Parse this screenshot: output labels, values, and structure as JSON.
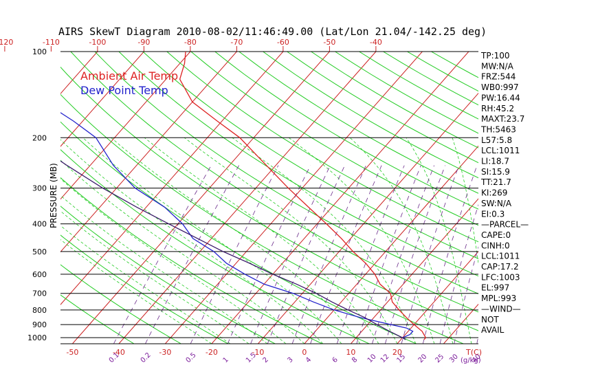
{
  "chart_data": {
    "type": "line",
    "title": "AIRS SkewT Diagram 2010-08-02/11:46:49.00 (Lat/Lon 21.04/-142.25 deg)",
    "ylabel": "PRESSURE (MB)",
    "bottom_axis_unit": "T(C)",
    "mixing_unit": "(g/kg)",
    "y_scale": "log",
    "ylim": [
      1050,
      100
    ],
    "pressure_lines": [
      100,
      200,
      300,
      400,
      500,
      600,
      700,
      800,
      900,
      1000
    ],
    "pressure_tick_labels": [
      "100",
      "200",
      "300",
      "400",
      "500",
      "600",
      "700",
      "800",
      "900",
      "1000"
    ],
    "bottom_temp_ticks": [
      -50,
      -40,
      -30,
      -20,
      -10,
      0,
      10,
      20
    ],
    "bottom_temp_labels": [
      "-50",
      "-40",
      "-30",
      "-20",
      "-10",
      "0",
      "10",
      "20"
    ],
    "top_temp_ticks": [
      -120,
      -110,
      -100,
      -90,
      -80,
      -70,
      -60,
      -50,
      -40
    ],
    "top_temp_labels": [
      "-120",
      "-110",
      "-100",
      "-90",
      "-80",
      "-70",
      "-60",
      "-50",
      "-40"
    ],
    "mixing_ratio_labels": [
      "0.1",
      "0.2",
      "0.5",
      "1",
      "1.5",
      "2",
      "3",
      "4",
      "6",
      "8",
      "10",
      "12",
      "15",
      "20",
      "25",
      "30",
      "40"
    ],
    "legend": [
      {
        "label": "Ambient Air Temp",
        "color": "#dd2222"
      },
      {
        "label": "Dew Point Temp",
        "color": "#2222cc"
      }
    ],
    "series": [
      {
        "name": "Ambient Air Temp",
        "color": "#dd2222",
        "points": [
          [
            1015,
            25
          ],
          [
            1000,
            25
          ],
          [
            975,
            24
          ],
          [
            950,
            23
          ],
          [
            900,
            20
          ],
          [
            850,
            17
          ],
          [
            800,
            14
          ],
          [
            750,
            11
          ],
          [
            700,
            9
          ],
          [
            650,
            5
          ],
          [
            600,
            2
          ],
          [
            550,
            -2
          ],
          [
            500,
            -7
          ],
          [
            450,
            -12
          ],
          [
            400,
            -18
          ],
          [
            350,
            -25
          ],
          [
            300,
            -33
          ],
          [
            250,
            -42
          ],
          [
            200,
            -53
          ],
          [
            175,
            -61
          ],
          [
            150,
            -70
          ],
          [
            125,
            -77
          ],
          [
            110,
            -79
          ],
          [
            100,
            -81
          ]
        ]
      },
      {
        "name": "Dew Point Temp",
        "color": "#2222cc",
        "points": [
          [
            1015,
            21
          ],
          [
            1000,
            20
          ],
          [
            975,
            21
          ],
          [
            950,
            21
          ],
          [
            925,
            19
          ],
          [
            900,
            15
          ],
          [
            850,
            7
          ],
          [
            800,
            0
          ],
          [
            750,
            -6
          ],
          [
            700,
            -12
          ],
          [
            650,
            -20
          ],
          [
            600,
            -26
          ],
          [
            550,
            -32
          ],
          [
            500,
            -37
          ],
          [
            450,
            -44
          ],
          [
            400,
            -49
          ],
          [
            350,
            -56
          ],
          [
            300,
            -66
          ],
          [
            250,
            -75
          ],
          [
            200,
            -84
          ],
          [
            175,
            -92
          ],
          [
            150,
            -102
          ],
          [
            125,
            -112
          ],
          [
            100,
            -120
          ]
        ]
      },
      {
        "name": "Parcel",
        "color": "#3a1a6a",
        "points": [
          [
            1015,
            21
          ],
          [
            1000,
            20
          ],
          [
            950,
            16
          ],
          [
            900,
            12
          ],
          [
            850,
            8
          ],
          [
            800,
            3
          ],
          [
            750,
            -2
          ],
          [
            700,
            -7
          ],
          [
            650,
            -13
          ],
          [
            600,
            -20
          ],
          [
            550,
            -27
          ],
          [
            500,
            -35
          ],
          [
            450,
            -43
          ],
          [
            400,
            -52
          ],
          [
            350,
            -62
          ],
          [
            300,
            -73
          ],
          [
            250,
            -85
          ],
          [
            200,
            -99
          ],
          [
            150,
            -118
          ],
          [
            100,
            -148
          ]
        ]
      }
    ]
  },
  "indices": [
    "TP:100",
    "MW:N/A",
    "FRZ:544",
    "WB0:997",
    "PW:16.44",
    "RH:45.2",
    "MAXT:23.7",
    "TH:5463",
    "L57:5.8",
    "LCL:1011",
    "LI:18.7",
    "SI:15.9",
    "TT:21.7",
    "KI:269",
    "SW:N/A",
    "EI:0.3",
    "—PARCEL—",
    "CAPE:0",
    "CINH:0",
    "LCL:1011",
    "CAP:17.2",
    "LFC:1003",
    "EL:997",
    "MPL:993",
    "—WIND—",
    "NOT",
    "AVAIL"
  ],
  "colors": {
    "isotherm": "#cc2222",
    "dry_adiabat": "#22cc22",
    "moist_adiabat": "#22cc22",
    "mixing_ratio": "#6a2a8a",
    "isobar": "#000000",
    "axis_label": "#cc2222",
    "mixing_label": "#7a1a9a"
  }
}
